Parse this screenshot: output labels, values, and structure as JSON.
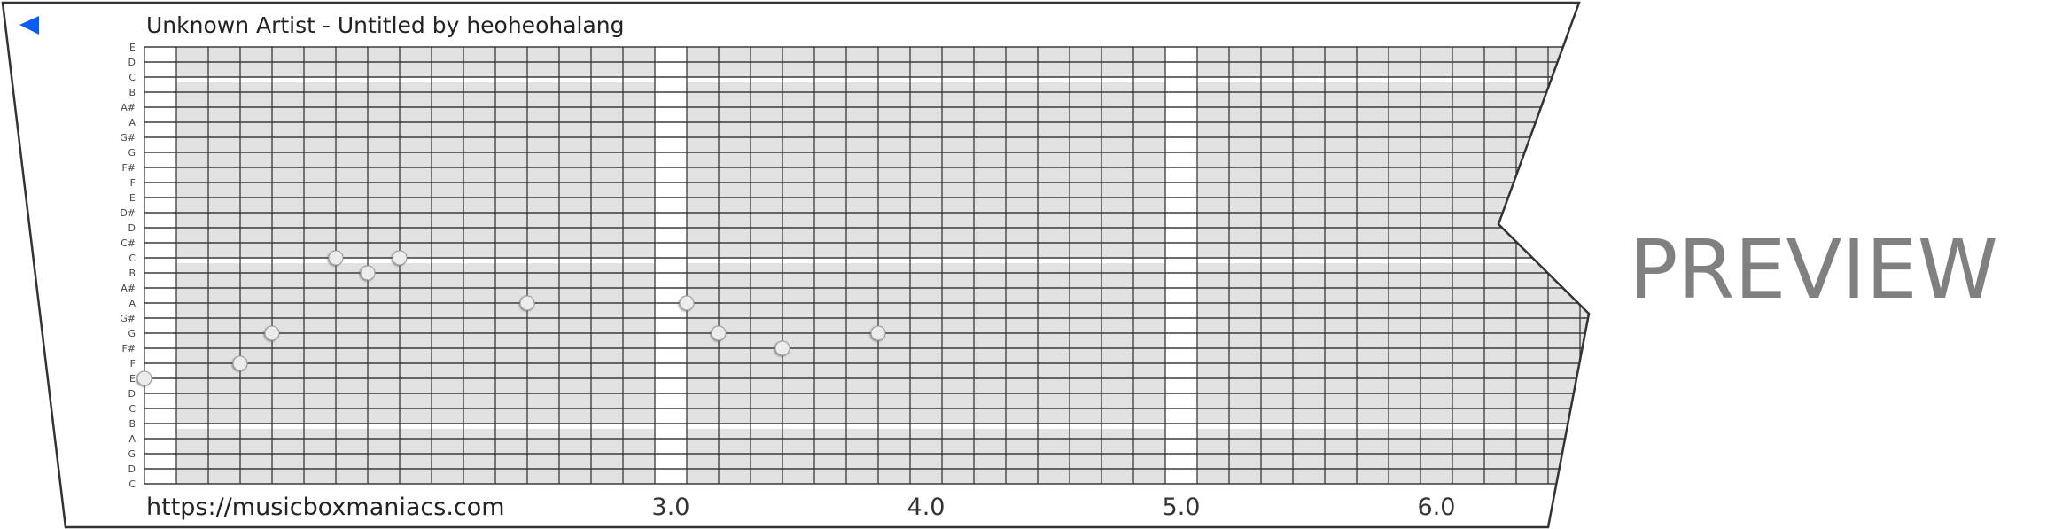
{
  "header": {
    "title": "Unknown Artist - Untitled by heoheohalang",
    "back_icon": "back-triangle-icon",
    "back_color": "#0a5cf5"
  },
  "footer": {
    "url": "https://musicboxmaniacs.com"
  },
  "watermark": "PREVIEW",
  "chart_data": {
    "type": "scatter",
    "pitch_labels": [
      "E",
      "D",
      "C",
      "B",
      "A#",
      "A",
      "G#",
      "G",
      "F#",
      "F",
      "E",
      "D#",
      "D",
      "C#",
      "C",
      "B",
      "A#",
      "A",
      "G#",
      "G",
      "F#",
      "F",
      "E",
      "D",
      "C",
      "B",
      "A",
      "G",
      "D",
      "C"
    ],
    "beat_labels": [
      {
        "beat": 3.0,
        "label": "3.0"
      },
      {
        "beat": 4.0,
        "label": "4.0"
      },
      {
        "beat": 5.0,
        "label": "5.0"
      },
      {
        "beat": 6.0,
        "label": "6.0"
      }
    ],
    "steps_per_beat": 8,
    "notes": [
      {
        "beat": 1.0,
        "row": 22,
        "pitch": "E"
      },
      {
        "beat": 1.375,
        "row": 21,
        "pitch": "F"
      },
      {
        "beat": 1.5,
        "row": 19,
        "pitch": "G"
      },
      {
        "beat": 1.75,
        "row": 14,
        "pitch": "C"
      },
      {
        "beat": 1.875,
        "row": 15,
        "pitch": "B"
      },
      {
        "beat": 2.0,
        "row": 14,
        "pitch": "C"
      },
      {
        "beat": 2.5,
        "row": 17,
        "pitch": "A"
      },
      {
        "beat": 3.125,
        "row": 17,
        "pitch": "A"
      },
      {
        "beat": 3.25,
        "row": 19,
        "pitch": "G"
      },
      {
        "beat": 3.5,
        "row": 20,
        "pitch": "F#"
      },
      {
        "beat": 3.875,
        "row": 19,
        "pitch": "G"
      }
    ],
    "colors": {
      "grid_fill": "#e2e2e2",
      "grid_line": "#3a3a3a",
      "note_fill": "#ececec"
    }
  }
}
